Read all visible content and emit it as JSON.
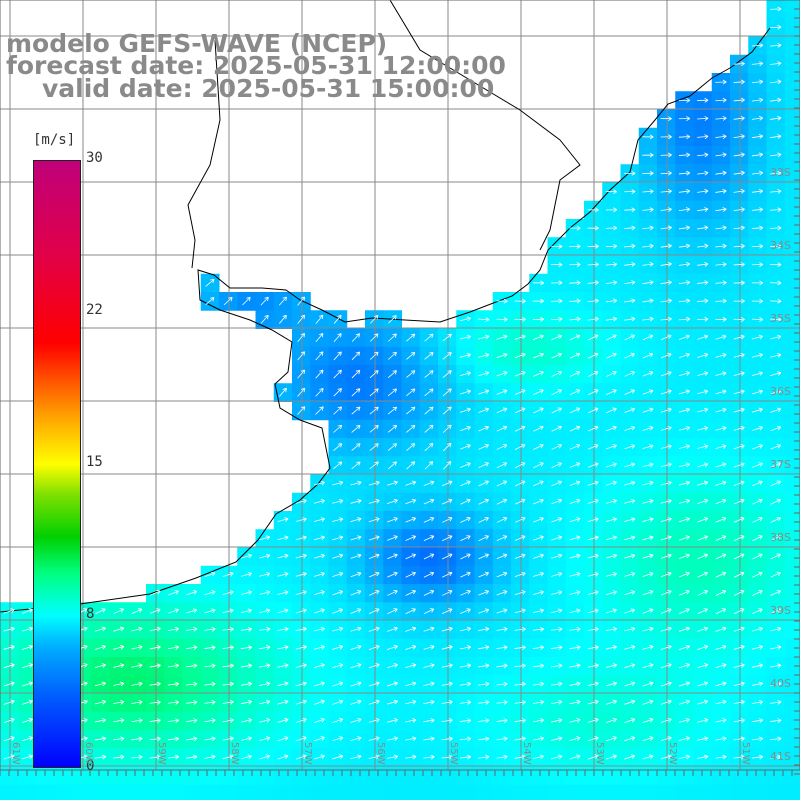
{
  "title": {
    "line1": "modelo GEFS-WAVE (NCEP)",
    "line2": "forecast date: 2025-05-31 12:00:00",
    "line3": "valid date: 2025-05-31 15:00:00"
  },
  "colorbar": {
    "unit": "[m/s]",
    "ticks": [
      {
        "label": "30",
        "value": 30
      },
      {
        "label": "22",
        "value": 22
      },
      {
        "label": "15",
        "value": 15
      },
      {
        "label": "8",
        "value": 8
      },
      {
        "label": "0",
        "value": 0
      }
    ],
    "min": 0,
    "max": 30
  },
  "lat_labels": [
    "33S",
    "34S",
    "35S",
    "36S",
    "37S",
    "38S",
    "39S",
    "40S",
    "41S"
  ],
  "lon_labels": [
    "61W",
    "60W",
    "59W",
    "58W",
    "57W",
    "56W",
    "55W",
    "54W",
    "53W",
    "52W",
    "51W"
  ],
  "colors": {
    "land": "#ffffff",
    "grid": "#888888",
    "coast": "#000000",
    "arrows": "#ffffff",
    "title": "#8a8a8a"
  }
}
